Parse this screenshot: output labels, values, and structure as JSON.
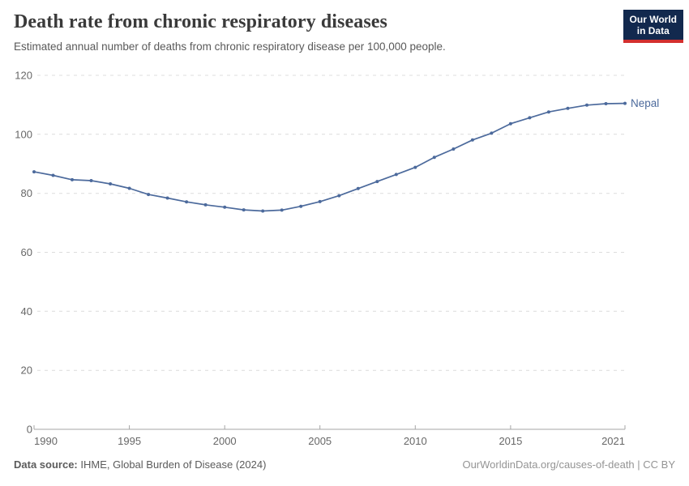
{
  "header": {
    "title": "Death rate from chronic respiratory diseases",
    "subtitle": "Estimated annual number of deaths from chronic respiratory disease per 100,000 people."
  },
  "logo": {
    "line1": "Our World",
    "line2": "in Data",
    "bg_color": "#12294e",
    "accent_color": "#d3302f"
  },
  "footer": {
    "source_label": "Data source:",
    "source_text": " IHME, Global Burden of Disease (2024)",
    "credit": "OurWorldinData.org/causes-of-death | CC BY"
  },
  "chart_data": {
    "type": "line",
    "title": "Death rate from chronic respiratory diseases",
    "subtitle": "Estimated annual number of deaths from chronic respiratory disease per 100,000 people.",
    "xlabel": "",
    "ylabel": "",
    "x": [
      1990,
      1991,
      1992,
      1993,
      1994,
      1995,
      1996,
      1997,
      1998,
      1999,
      2000,
      2001,
      2002,
      2003,
      2004,
      2005,
      2006,
      2007,
      2008,
      2009,
      2010,
      2011,
      2012,
      2013,
      2014,
      2015,
      2016,
      2017,
      2018,
      2019,
      2020,
      2021
    ],
    "series": [
      {
        "name": "Nepal",
        "color": "#4c6a9c",
        "values": [
          87.3,
          86.1,
          84.6,
          84.3,
          83.2,
          81.7,
          79.6,
          78.4,
          77.1,
          76.1,
          75.3,
          74.4,
          74.0,
          74.3,
          75.6,
          77.2,
          79.2,
          81.6,
          84.0,
          86.4,
          88.8,
          92.2,
          95.0,
          98.1,
          100.4,
          103.6,
          105.6,
          107.6,
          108.8,
          109.9,
          110.4,
          110.5
        ]
      }
    ],
    "ylim": [
      0,
      120
    ],
    "xlim": [
      1990,
      2021
    ],
    "yticks": [
      0,
      20,
      40,
      60,
      80,
      100,
      120
    ],
    "xticks": [
      1990,
      1995,
      2000,
      2005,
      2010,
      2015,
      2021
    ],
    "grid": "horizontal-dashed",
    "legend": "end-of-line-label",
    "axis_label_color": "#676767",
    "gridline_color": "#dcdcdc",
    "axis_line_color": "#a5a5a5"
  }
}
